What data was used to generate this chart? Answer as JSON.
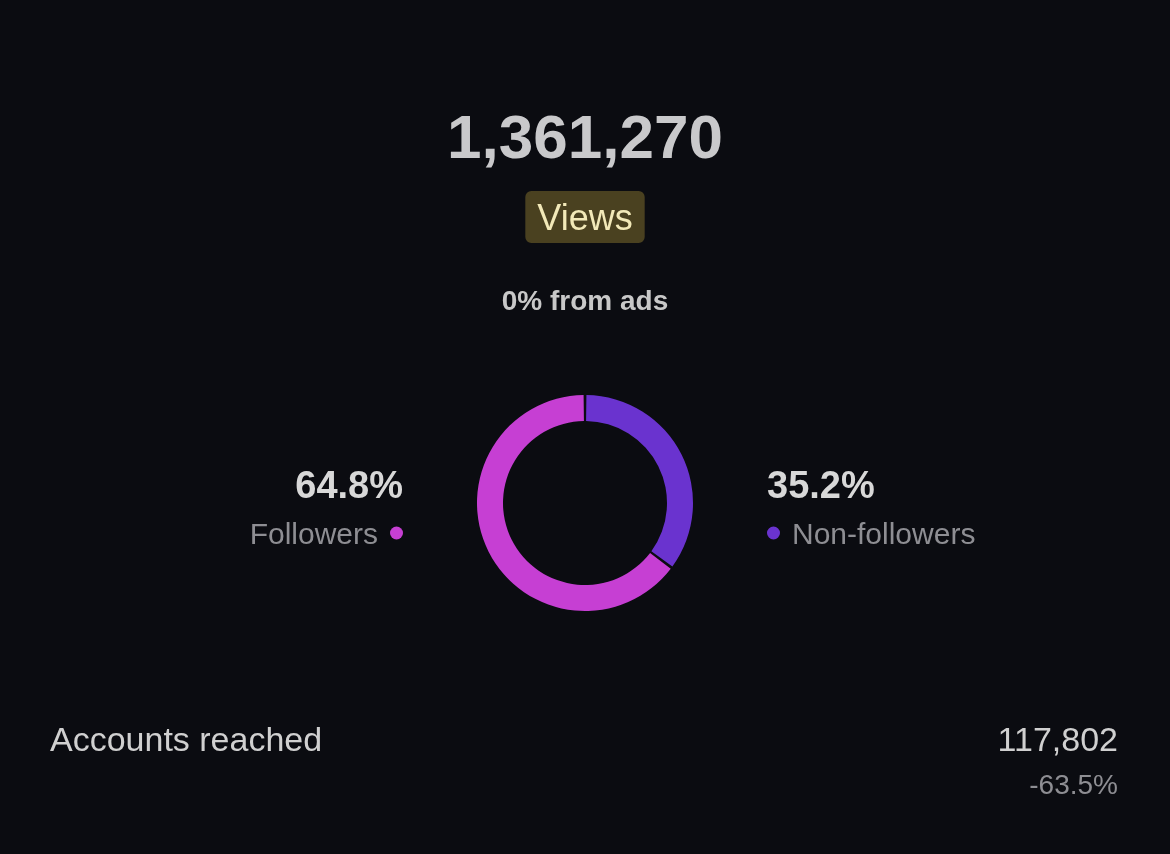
{
  "chart_data": {
    "type": "donut",
    "title": "1,361,270",
    "subtitle": "Views",
    "categories": [
      "Followers",
      "Non-followers"
    ],
    "values": [
      64.8,
      35.2
    ],
    "value_labels": [
      "64.8%",
      "35.2%"
    ],
    "colors": [
      "#c63fd3",
      "#6a33cf"
    ],
    "annotations": [
      "0% from ads",
      "Accounts reached",
      "117,802",
      "-63.5%"
    ]
  }
}
